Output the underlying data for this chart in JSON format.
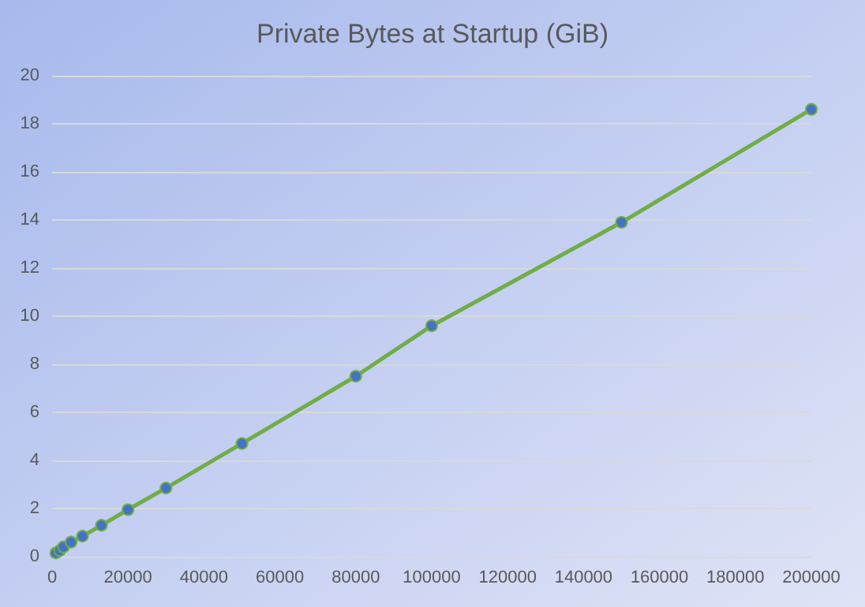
{
  "chart_data": {
    "type": "line",
    "title": "Private Bytes at Startup (GiB)",
    "x": [
      1000,
      2000,
      3000,
      5000,
      8000,
      13000,
      20000,
      30000,
      50000,
      80000,
      100000,
      150000,
      200000
    ],
    "series": [
      {
        "color": "#70ad47",
        "values": [
          0.15,
          0.25,
          0.4,
          0.6,
          0.85,
          1.3,
          1.95,
          2.85,
          4.7,
          7.5,
          9.6,
          13.9,
          18.6
        ]
      }
    ],
    "xlim": [
      0,
      200000
    ],
    "xticks": [
      0,
      20000,
      40000,
      60000,
      80000,
      100000,
      120000,
      140000,
      160000,
      180000,
      200000
    ],
    "ylim": [
      0,
      20
    ],
    "yticks": [
      0,
      2,
      4,
      6,
      8,
      10,
      12,
      14,
      16,
      18,
      20
    ],
    "grid": "y",
    "marker": "circle",
    "line_style": "solid"
  }
}
